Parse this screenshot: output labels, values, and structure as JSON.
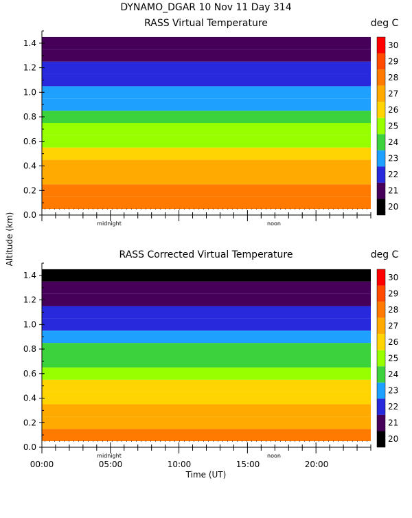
{
  "header": {
    "title_line": "DYNAMO_DGAR  10 Nov 11 Day 314"
  },
  "y_axis_label": "Altitude (km)",
  "x_axis_label": "Time (UT)",
  "x_tick_labels": [
    "00:00",
    "05:00",
    "10:00",
    "15:00",
    "20:00"
  ],
  "marker_labels": {
    "midnight": "midnight",
    "noon": "noon"
  },
  "panels": [
    {
      "title": "RASS Virtual Temperature",
      "units": "deg C"
    },
    {
      "title": "RASS Corrected Virtual Temperature",
      "units": "deg C"
    }
  ],
  "colorbar": {
    "levels": [
      "30",
      "29",
      "28",
      "27",
      "26",
      "25",
      "24",
      "23",
      "22",
      "21",
      "20"
    ],
    "colors": [
      "#ff0000",
      "#ff4a00",
      "#ff7a00",
      "#ffaa00",
      "#ffd400",
      "#96ff00",
      "#3cd23c",
      "#1ea0ff",
      "#2828dc",
      "#46005a",
      "#000000"
    ]
  },
  "chart_data": [
    {
      "type": "heatmap",
      "title": "RASS Virtual Temperature",
      "units": "deg C",
      "ylabel": "Altitude (km)",
      "xlabel": "Time (UT)",
      "xlim": [
        0,
        24
      ],
      "ylim": [
        0,
        1.5
      ],
      "y_ticks": [
        "0.0",
        "0.2",
        "0.4",
        "0.6",
        "0.8",
        "1.0",
        "1.2",
        "1.4"
      ],
      "x_ticks": [
        "00:00",
        "05:00",
        "10:00",
        "15:00",
        "20:00"
      ],
      "altitude_km": [
        0.1,
        0.2,
        0.3,
        0.4,
        0.5,
        0.6,
        0.7,
        0.8,
        0.9,
        1.0,
        1.1,
        1.2,
        1.3,
        1.4
      ],
      "profile_deg_c": [
        28,
        27.5,
        27,
        26.5,
        26,
        25,
        24.5,
        24,
        23,
        22.5,
        22,
        21.5,
        21,
        20.5
      ],
      "color_range": [
        20,
        30
      ]
    },
    {
      "type": "heatmap",
      "title": "RASS Corrected Virtual Temperature",
      "units": "deg C",
      "ylabel": "Altitude (km)",
      "xlabel": "Time (UT)",
      "xlim": [
        0,
        24
      ],
      "ylim": [
        0,
        1.5
      ],
      "y_ticks": [
        "0.0",
        "0.2",
        "0.4",
        "0.6",
        "0.8",
        "1.0",
        "1.2",
        "1.4"
      ],
      "x_ticks": [
        "00:00",
        "05:00",
        "10:00",
        "15:00",
        "20:00"
      ],
      "altitude_km": [
        0.1,
        0.2,
        0.3,
        0.4,
        0.5,
        0.6,
        0.7,
        0.8,
        0.9,
        1.0,
        1.1,
        1.2,
        1.3,
        1.4
      ],
      "profile_deg_c": [
        27.5,
        27,
        26.5,
        26,
        25.5,
        24.5,
        24,
        23.5,
        22.5,
        22,
        21.5,
        21,
        20.5,
        20
      ],
      "color_range": [
        20,
        30
      ]
    }
  ]
}
